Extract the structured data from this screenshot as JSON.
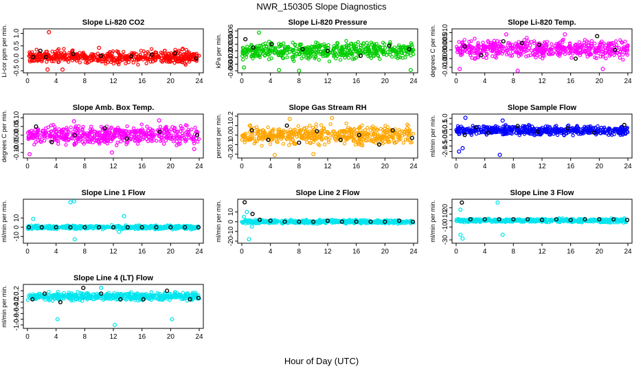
{
  "figure": {
    "title": "NWR_150305  Slope Diagnostics",
    "xlabel": "Hour of Day (UTC)"
  },
  "colors": {
    "red": "#ff0000",
    "green": "#00cc00",
    "magenta": "#ff00ff",
    "orange": "#ffa500",
    "blue": "#0000ff",
    "cyan": "#00e5ee",
    "black": "#000000"
  },
  "chart_data": [
    {
      "type": "scatter",
      "title": "Slope Li-820 CO2",
      "ylabel": "Li-cor ppm per min.",
      "color": "#ff0000",
      "xlim": [
        0,
        24
      ],
      "ylim": [
        -0.5,
        1.1
      ],
      "x_ticks": [
        0,
        4,
        8,
        12,
        16,
        20,
        24
      ],
      "y_ticks": [
        -0.5,
        0.0,
        0.5,
        1.0
      ],
      "y_tick_labels": [
        "-0.5",
        "0.0",
        "0.5",
        "1.0"
      ],
      "series": [
        {
          "values": [
            [
              3.0,
              1.05
            ],
            [
              2.8,
              -0.45
            ],
            [
              4.9,
              -0.45
            ],
            [
              10.0,
              0.42
            ],
            [
              21.7,
              0.38
            ]
          ]
        },
        {
          "values": [
            [
              0.8,
              0.05
            ],
            [
              1.8,
              0.3
            ],
            [
              2.6,
              0.05
            ],
            [
              6.4,
              0.18
            ],
            [
              10.3,
              0.1
            ],
            [
              14.5,
              0.08
            ],
            [
              17.4,
              0.15
            ],
            [
              20.6,
              0.2
            ],
            [
              23.6,
              0.0
            ]
          ]
        }
      ],
      "band": {
        "center": 0.05,
        "spread": 0.22
      }
    },
    {
      "type": "scatter",
      "title": "Slope Li-820 Pressure",
      "ylabel": "kPa per min.",
      "color": "#00cc00",
      "xlim": [
        0,
        24
      ],
      "ylim": [
        -0.06,
        0.06
      ],
      "x_ticks": [
        0,
        4,
        8,
        12,
        16,
        20,
        24
      ],
      "y_ticks": [
        -0.06,
        -0.04,
        -0.02,
        0.0,
        0.02,
        0.04,
        0.06
      ],
      "y_tick_labels": [
        "-0.06",
        "-0.04",
        "-0.02",
        "0.00",
        "0.02",
        "0.04",
        "0.06"
      ],
      "series": [
        {
          "values": [
            [
              2.4,
              0.055
            ],
            [
              0.3,
              -0.05
            ],
            [
              5.2,
              -0.058
            ],
            [
              8.0,
              -0.06
            ],
            [
              23.6,
              -0.058
            ]
          ]
        },
        {
          "values": [
            [
              0.5,
              0.035
            ],
            [
              1.6,
              0.01
            ],
            [
              4.2,
              0.02
            ],
            [
              8.5,
              0.005
            ],
            [
              12.0,
              0.0
            ],
            [
              16.6,
              -0.015
            ],
            [
              20.6,
              0.015
            ],
            [
              23.4,
              0.005
            ]
          ]
        }
      ],
      "band": {
        "center": 0.0,
        "spread": 0.022
      }
    },
    {
      "type": "scatter",
      "title": "Slope Li-820 Temp.",
      "ylabel": "degrees C per min.",
      "color": "#ff00ff",
      "xlim": [
        0,
        24
      ],
      "ylim": [
        -0.012,
        0.011
      ],
      "x_ticks": [
        0,
        4,
        8,
        12,
        16,
        20,
        24
      ],
      "y_ticks": [
        -0.01,
        -0.005,
        0.0,
        0.005,
        0.01
      ],
      "y_tick_labels": [
        "-0.010",
        "-0.005",
        "0.000",
        "0.005",
        "0.010"
      ],
      "series": [
        {
          "values": [
            [
              0.5,
              -0.011
            ],
            [
              7.0,
              0.009
            ],
            [
              15.2,
              0.009
            ],
            [
              20.5,
              -0.011
            ],
            [
              8.6,
              -0.012
            ]
          ]
        },
        {
          "values": [
            [
              1.2,
              0.002
            ],
            [
              3.5,
              -0.003
            ],
            [
              6.6,
              0.005
            ],
            [
              9.2,
              0.004
            ],
            [
              11.6,
              0.003
            ],
            [
              16.7,
              -0.005
            ],
            [
              19.7,
              0.008
            ],
            [
              22.2,
              0.0
            ]
          ]
        }
      ],
      "band": {
        "center": 0.0005,
        "spread": 0.0045
      }
    },
    {
      "type": "scatter",
      "title": "Slope Amb. Box Temp.",
      "ylabel": "degrees C per min.",
      "color": "#ff00ff",
      "xlim": [
        0,
        24
      ],
      "ylim": [
        -0.12,
        0.11
      ],
      "x_ticks": [
        0,
        4,
        8,
        12,
        16,
        20,
        24
      ],
      "y_ticks": [
        -0.1,
        -0.05,
        0.0,
        0.05,
        0.1
      ],
      "y_tick_labels": [
        "-0.10",
        "-0.05",
        "0.00",
        "0.05",
        "0.10"
      ],
      "series": [
        {
          "values": [
            [
              0.3,
              -0.11
            ],
            [
              11.8,
              -0.1
            ],
            [
              23.3,
              -0.08
            ],
            [
              6.5,
              0.08
            ],
            [
              18.4,
              0.085
            ]
          ]
        },
        {
          "values": [
            [
              1.2,
              0.05
            ],
            [
              3.4,
              -0.04
            ],
            [
              6.6,
              0.0
            ],
            [
              10.8,
              0.04
            ],
            [
              13.9,
              -0.02
            ],
            [
              18.5,
              0.02
            ],
            [
              23.7,
              0.0
            ]
          ]
        }
      ],
      "band": {
        "center": 0.0,
        "spread": 0.045
      }
    },
    {
      "type": "scatter",
      "title": "Slope Gas Stream RH",
      "ylabel": "percent per min.",
      "color": "#ffa500",
      "xlim": [
        0,
        24
      ],
      "ylim": [
        -0.22,
        0.2
      ],
      "x_ticks": [
        0,
        4,
        8,
        12,
        16,
        20,
        24
      ],
      "y_ticks": [
        -0.2,
        -0.1,
        0.0,
        0.1,
        0.2
      ],
      "y_tick_labels": [
        "-0.2",
        "-0.1",
        "0.0",
        "0.1",
        "0.2"
      ],
      "series": [
        {
          "values": [
            [
              4.6,
              -0.21
            ],
            [
              10.0,
              -0.2
            ],
            [
              12.6,
              0.18
            ],
            [
              6.7,
              0.17
            ]
          ]
        },
        {
          "values": [
            [
              1.4,
              0.05
            ],
            [
              3.7,
              -0.05
            ],
            [
              6.3,
              0.1
            ],
            [
              8.0,
              -0.08
            ],
            [
              10.5,
              0.04
            ],
            [
              13.8,
              -0.05
            ],
            [
              16.4,
              0.0
            ],
            [
              19.2,
              -0.1
            ],
            [
              21.1,
              0.05
            ],
            [
              23.8,
              -0.03
            ]
          ]
        }
      ],
      "band": {
        "center": 0.0,
        "spread": 0.085
      }
    },
    {
      "type": "scatter",
      "title": "Slope Sample Flow",
      "ylabel": "ml/min per min.",
      "color": "#0000ff",
      "xlim": [
        0,
        24
      ],
      "ylim": [
        -2.4,
        1.2
      ],
      "x_ticks": [
        0,
        4,
        8,
        12,
        16,
        20,
        24
      ],
      "y_ticks": [
        -2.0,
        -1.5,
        -1.0,
        -0.5,
        0.0,
        0.5,
        1.0
      ],
      "y_tick_labels": [
        "-2.0",
        "-1.5",
        "-1.0",
        "-0.5",
        "0.0",
        "0.5",
        "1.0"
      ],
      "series": [
        {
          "values": [
            [
              0.4,
              -2.0
            ],
            [
              0.9,
              -1.7
            ],
            [
              6.1,
              -2.3
            ],
            [
              1.3,
              1.05
            ],
            [
              6.5,
              0.8
            ]
          ]
        },
        {
          "values": [
            [
              1.2,
              -0.5
            ],
            [
              2.8,
              0.2
            ],
            [
              4.5,
              -0.3
            ],
            [
              8.6,
              0.3
            ],
            [
              11.4,
              -0.2
            ],
            [
              15.6,
              0.1
            ],
            [
              19.3,
              -0.3
            ],
            [
              23.5,
              0.4
            ]
          ]
        }
      ],
      "band": {
        "center": -0.1,
        "spread": 0.35
      }
    },
    {
      "type": "scatter",
      "title": "Slope Line 1 Flow",
      "ylabel": "ml/min per min.",
      "color": "#00e5ee",
      "xlim": [
        0,
        24
      ],
      "ylim": [
        -15,
        28
      ],
      "x_ticks": [
        0,
        4,
        8,
        12,
        16,
        20,
        24
      ],
      "y_ticks": [
        -10,
        0,
        10
      ],
      "y_tick_labels": [
        "-10",
        "0",
        "10"
      ],
      "series": [
        {
          "values": [
            [
              6.0,
              27
            ],
            [
              6.5,
              28
            ],
            [
              13.5,
              12
            ],
            [
              6.6,
              -13
            ],
            [
              12.8,
              -5
            ],
            [
              0.8,
              9
            ]
          ]
        },
        {
          "values": [
            [
              0.2,
              0
            ],
            [
              2.0,
              0
            ],
            [
              4.0,
              0
            ],
            [
              6.0,
              0
            ],
            [
              8.0,
              0
            ],
            [
              10.0,
              0
            ],
            [
              12.0,
              0
            ],
            [
              14.0,
              0
            ],
            [
              16.0,
              0
            ],
            [
              18.0,
              0
            ],
            [
              20.0,
              0
            ],
            [
              22.0,
              0
            ],
            [
              23.9,
              0
            ]
          ]
        }
      ],
      "band": {
        "center": 0.0,
        "spread": 1.8
      }
    },
    {
      "type": "scatter",
      "title": "Slope Line 2 Flow",
      "ylabel": "ml/min per min.",
      "color": "#00e5ee",
      "xlim": [
        0,
        24
      ],
      "ylim": [
        -20,
        21
      ],
      "x_ticks": [
        0,
        4,
        8,
        12,
        16,
        20,
        24
      ],
      "y_ticks": [
        -20,
        -10,
        0,
        10
      ],
      "y_tick_labels": [
        "-20",
        "-10",
        "0",
        "10"
      ],
      "series": [
        {
          "values": [
            [
              0.7,
              10
            ],
            [
              1.0,
              -18
            ],
            [
              0.3,
              5
            ],
            [
              1.4,
              -5
            ]
          ]
        },
        {
          "values": [
            [
              0.4,
              20
            ],
            [
              1.5,
              8
            ],
            [
              2.5,
              2
            ],
            [
              4.0,
              1
            ],
            [
              6.0,
              0
            ],
            [
              8.0,
              0
            ],
            [
              10.0,
              0
            ],
            [
              12.0,
              1
            ],
            [
              14.0,
              0
            ],
            [
              16.0,
              0
            ],
            [
              18.0,
              0
            ],
            [
              20.0,
              0
            ],
            [
              22.0,
              1
            ],
            [
              23.9,
              0
            ]
          ]
        }
      ],
      "band": {
        "center": 0.0,
        "spread": 1.5
      }
    },
    {
      "type": "scatter",
      "title": "Slope Line 3 Flow",
      "ylabel": "ml/min per min.",
      "color": "#00e5ee",
      "xlim": [
        0,
        24
      ],
      "ylim": [
        -32,
        30
      ],
      "x_ticks": [
        0,
        4,
        8,
        12,
        16,
        20,
        24
      ],
      "y_ticks": [
        -30,
        -10,
        0,
        10,
        20
      ],
      "y_tick_labels": [
        "-30",
        "-10",
        "0",
        "10",
        "20"
      ],
      "series": [
        {
          "values": [
            [
              0.6,
              -22
            ],
            [
              0.9,
              -28
            ],
            [
              5.8,
              28
            ],
            [
              6.5,
              -22
            ],
            [
              0.6,
              17
            ]
          ]
        },
        {
          "values": [
            [
              0.8,
              28
            ],
            [
              2.0,
              2
            ],
            [
              4.0,
              2
            ],
            [
              6.0,
              2
            ],
            [
              8.0,
              2
            ],
            [
              10.0,
              2
            ],
            [
              12.0,
              1
            ],
            [
              14.0,
              2
            ],
            [
              16.0,
              1
            ],
            [
              18.0,
              2
            ],
            [
              20.0,
              2
            ],
            [
              22.0,
              2
            ],
            [
              23.9,
              1
            ]
          ]
        }
      ],
      "band": {
        "center": 0.0,
        "spread": 2.5
      }
    },
    {
      "type": "scatter",
      "title": "Slope Line 4 (LT) Flow",
      "ylabel": "ml/min per min.",
      "color": "#00e5ee",
      "xlim": [
        0,
        24
      ],
      "ylim": [
        -1.05,
        0.35
      ],
      "x_ticks": [
        0,
        4,
        8,
        12,
        16,
        20,
        24
      ],
      "y_ticks": [
        -1.0,
        -0.8,
        -0.6,
        -0.4,
        -0.2,
        0.0,
        0.2
      ],
      "y_tick_labels": [
        "-1.0",
        "-0.8",
        "-0.6",
        "-0.4",
        "-0.2",
        "0.0",
        "0.2"
      ],
      "series": [
        {
          "values": [
            [
              4.2,
              -0.8
            ],
            [
              12.2,
              -1.0
            ],
            [
              20.2,
              -0.8
            ],
            [
              10.3,
              0.3
            ]
          ]
        },
        {
          "values": [
            [
              0.7,
              -0.1
            ],
            [
              2.4,
              0.1
            ],
            [
              4.6,
              -0.2
            ],
            [
              7.8,
              0.3
            ],
            [
              10.3,
              0.1
            ],
            [
              13.0,
              -0.1
            ],
            [
              16.2,
              -0.1
            ],
            [
              19.5,
              0.2
            ],
            [
              22.7,
              -0.1
            ],
            [
              23.9,
              -0.05
            ]
          ]
        }
      ],
      "band": {
        "center": 0.0,
        "spread": 0.12
      }
    }
  ]
}
